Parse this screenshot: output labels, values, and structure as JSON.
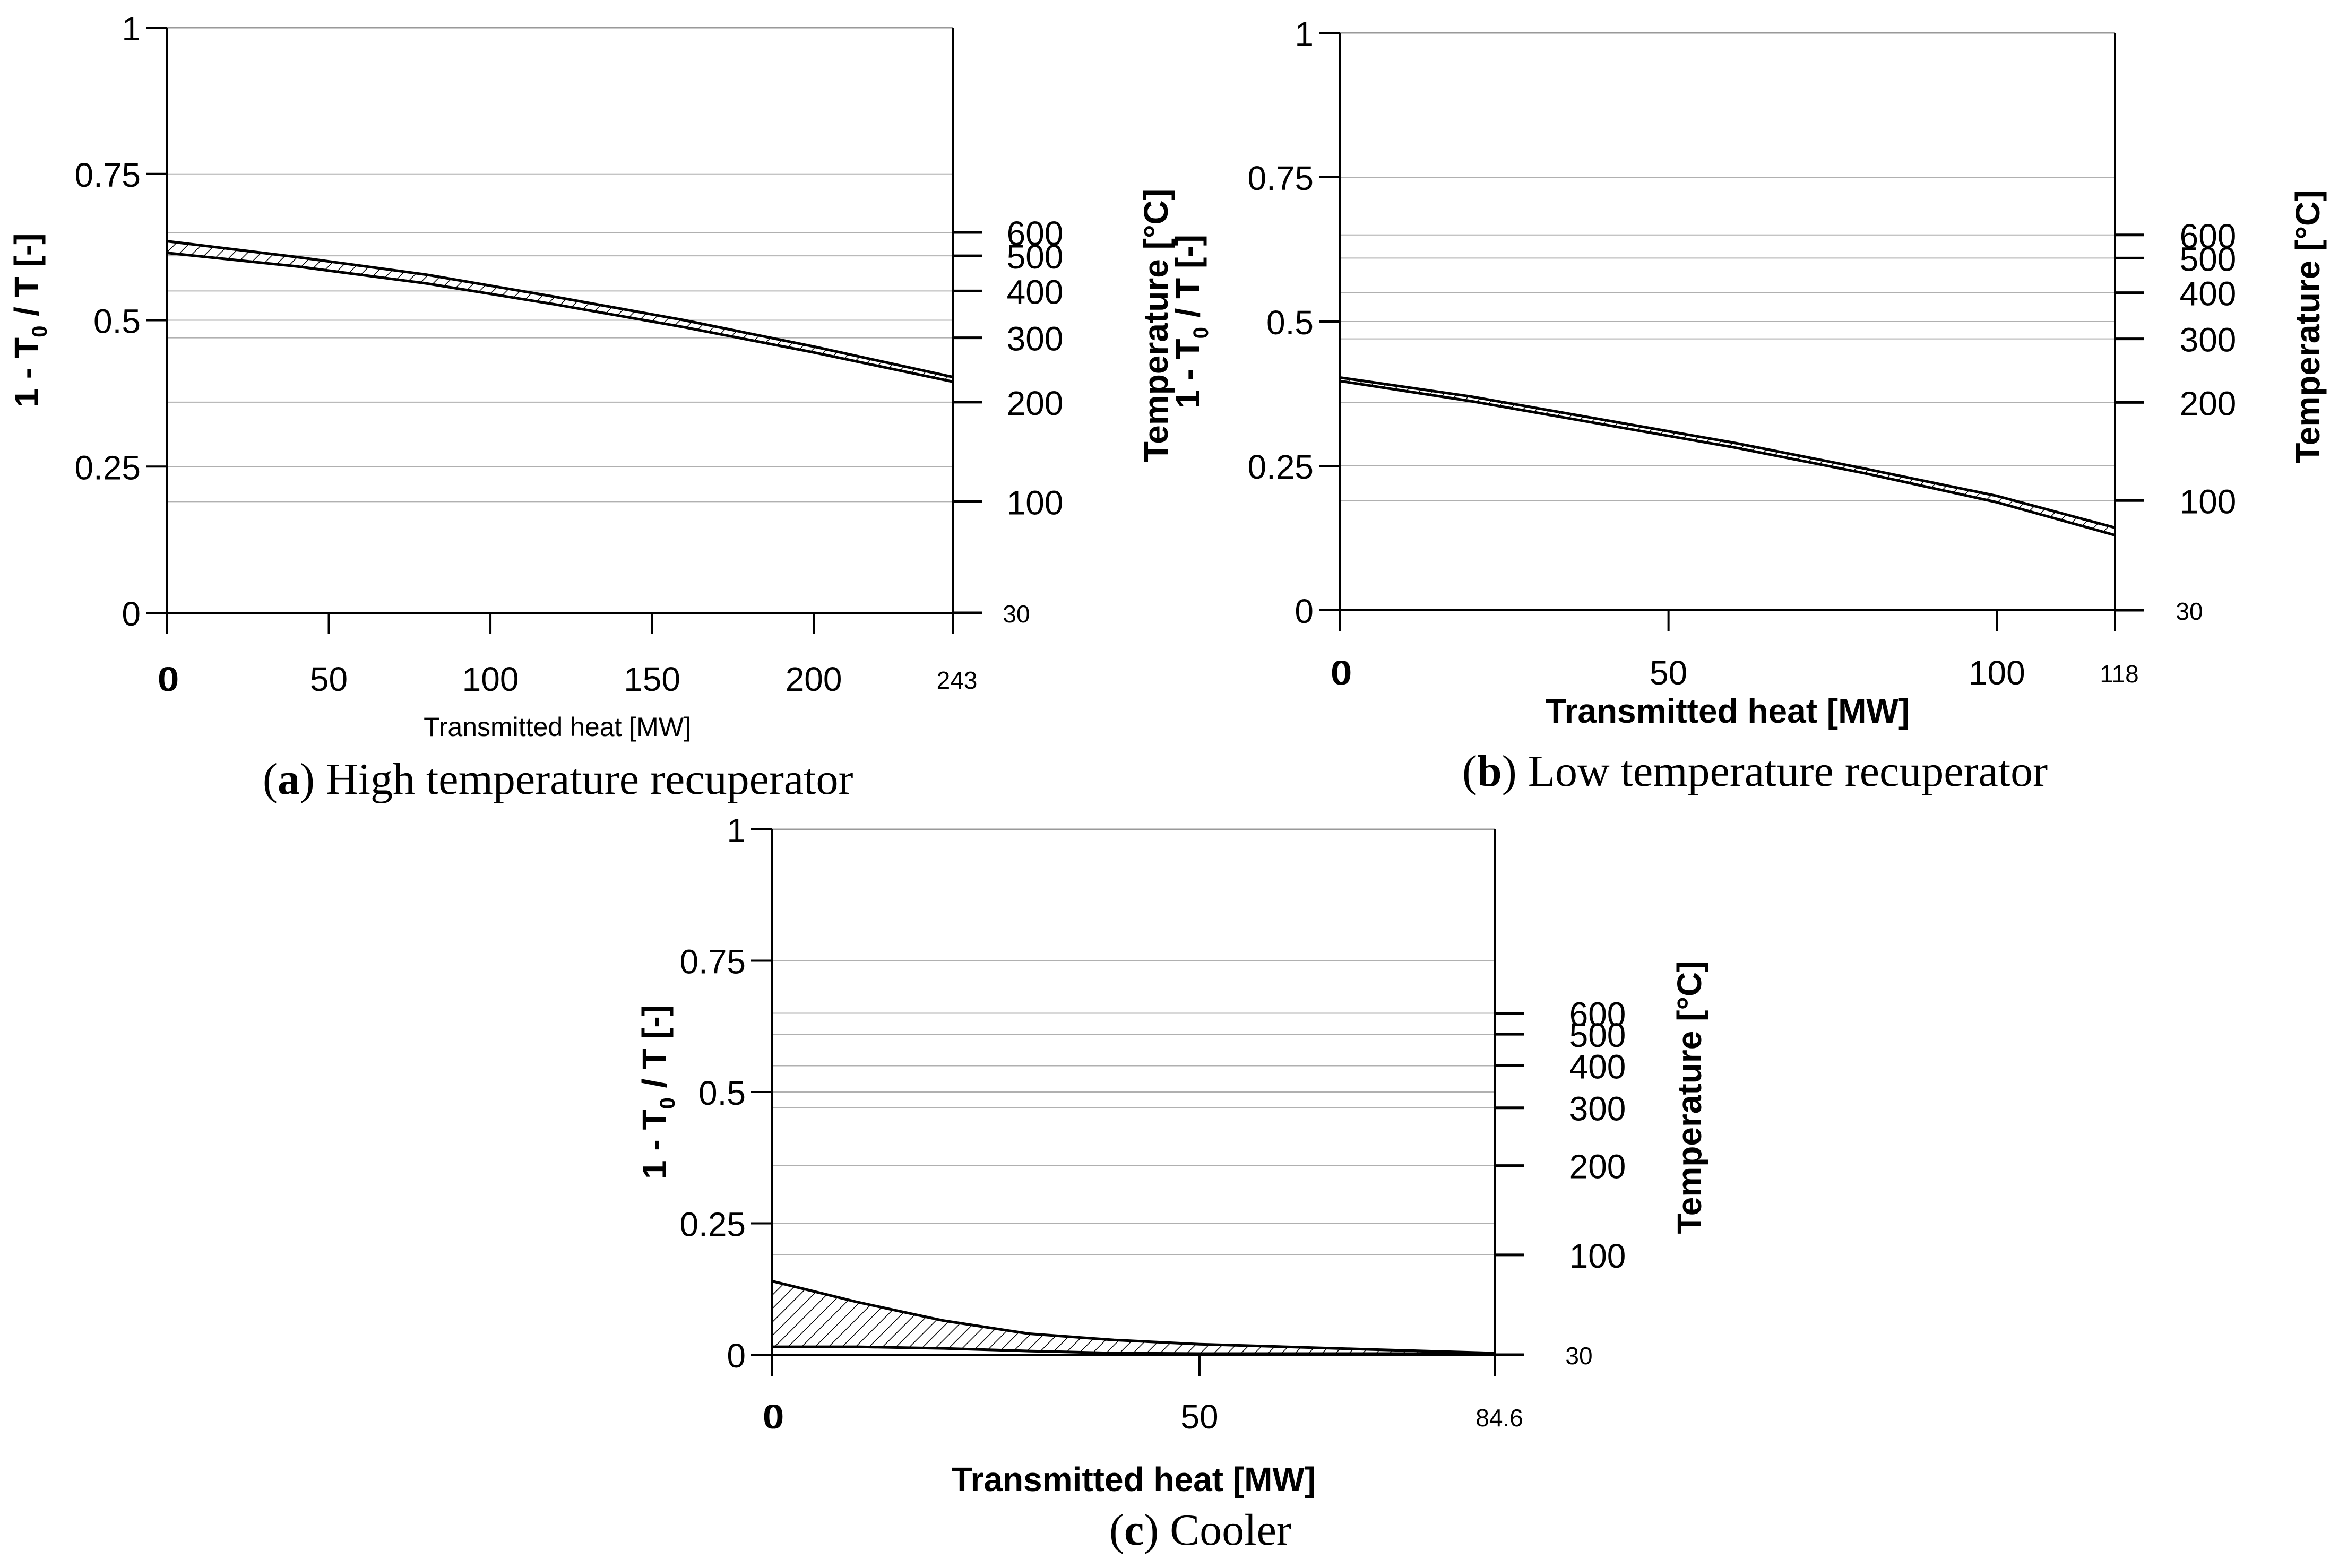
{
  "figure": {
    "hatch_color": "#000000",
    "grid_color": "#b0b0b0",
    "panels": [
      {
        "caption_letter": "a",
        "caption_text": "High temperature recuperator"
      },
      {
        "caption_letter": "b",
        "caption_text": "Low temperature recuperator"
      },
      {
        "caption_letter": "c",
        "caption_text": "Cooler"
      }
    ]
  },
  "chart_data": [
    {
      "type": "area",
      "title": "(a) High temperature recuperator",
      "xlabel": "Transmitted heat [MW]",
      "ylabel": "1 - T0 / T [-]",
      "ylabel_main": "1 - T",
      "ylabel_sub": "0",
      "ylabel_rest": " / T [-]",
      "y2label": "Temperature [°C]",
      "xlim": [
        0,
        243
      ],
      "ylim": [
        0,
        1
      ],
      "x_ticks": [
        0,
        50,
        100,
        150,
        200
      ],
      "x_ticks_overlay": [
        0
      ],
      "x_end_label": "243",
      "y_ticks": [
        "0",
        "0.25",
        "0.5",
        "0.75",
        "1"
      ],
      "y2_ticks": [
        "100",
        "200",
        "300",
        "400",
        "500",
        "600"
      ],
      "y2_base_label": "30",
      "gridlines_y": [
        0.19,
        0.36,
        0.25,
        0.47,
        0.5,
        0.55,
        0.61,
        0.65,
        0.75
      ],
      "series": [
        {
          "name": "upper",
          "x": [
            0,
            40,
            80,
            120,
            160,
            200,
            243
          ],
          "y": [
            0.635,
            0.608,
            0.578,
            0.54,
            0.5,
            0.455,
            0.403
          ]
        },
        {
          "name": "lower",
          "x": [
            0,
            40,
            80,
            120,
            160,
            200,
            243
          ],
          "y": [
            0.615,
            0.592,
            0.563,
            0.527,
            0.488,
            0.445,
            0.395
          ]
        }
      ]
    },
    {
      "type": "area",
      "title": "(b) Low temperature recuperator",
      "xlabel": "Transmitted heat [MW]",
      "ylabel": "1 - T0 / T [-]",
      "ylabel_main": "1 - T",
      "ylabel_sub": "0",
      "ylabel_rest": " / T [-]",
      "y2label": "Temperature [°C]",
      "xlim": [
        0,
        118
      ],
      "ylim": [
        0,
        1
      ],
      "x_ticks": [
        0,
        50,
        100
      ],
      "x_ticks_overlay": [
        0
      ],
      "x_end_label": "118",
      "y_ticks": [
        "0",
        "0.25",
        "0.5",
        "0.75",
        "1"
      ],
      "y2_ticks": [
        "100",
        "200",
        "300",
        "400",
        "500",
        "600"
      ],
      "y2_base_label": "30",
      "gridlines_y": [
        0.19,
        0.36,
        0.25,
        0.47,
        0.5,
        0.55,
        0.61,
        0.65,
        0.75
      ],
      "series": [
        {
          "name": "upper",
          "x": [
            0,
            20,
            40,
            60,
            80,
            100,
            118
          ],
          "y": [
            0.403,
            0.37,
            0.33,
            0.29,
            0.245,
            0.198,
            0.143
          ]
        },
        {
          "name": "lower",
          "x": [
            0,
            20,
            40,
            60,
            80,
            100,
            118
          ],
          "y": [
            0.397,
            0.362,
            0.322,
            0.282,
            0.237,
            0.187,
            0.13
          ]
        }
      ]
    },
    {
      "type": "area",
      "title": "(c) Cooler",
      "xlabel": "Transmitted heat [MW]",
      "ylabel": "1 - T0 / T [-]",
      "ylabel_main": "1 - T",
      "ylabel_sub": "0",
      "ylabel_rest": " / T [-]",
      "y2label": "Temperature [°C]",
      "xlim": [
        0,
        84.6
      ],
      "ylim": [
        0,
        1
      ],
      "x_ticks": [
        0,
        50
      ],
      "x_ticks_overlay": [
        0
      ],
      "x_end_label": "84.6",
      "y_ticks": [
        "0",
        "0.25",
        "0.5",
        "0.75",
        "1"
      ],
      "y2_ticks": [
        "100",
        "200",
        "300",
        "400",
        "500",
        "600"
      ],
      "y2_base_label": "30",
      "gridlines_y": [
        0.19,
        0.36,
        0.25,
        0.47,
        0.5,
        0.55,
        0.61,
        0.65,
        0.75
      ],
      "series": [
        {
          "name": "upper",
          "x": [
            0,
            10,
            20,
            30,
            40,
            50,
            60,
            70,
            84.6
          ],
          "y": [
            0.14,
            0.1,
            0.065,
            0.04,
            0.028,
            0.02,
            0.015,
            0.01,
            0.003
          ]
        },
        {
          "name": "lower",
          "x": [
            0,
            10,
            20,
            30,
            40,
            50,
            60,
            70,
            84.6
          ],
          "y": [
            0.015,
            0.015,
            0.012,
            0.007,
            0.003,
            0.002,
            0.002,
            0.002,
            0.002
          ]
        }
      ]
    }
  ]
}
